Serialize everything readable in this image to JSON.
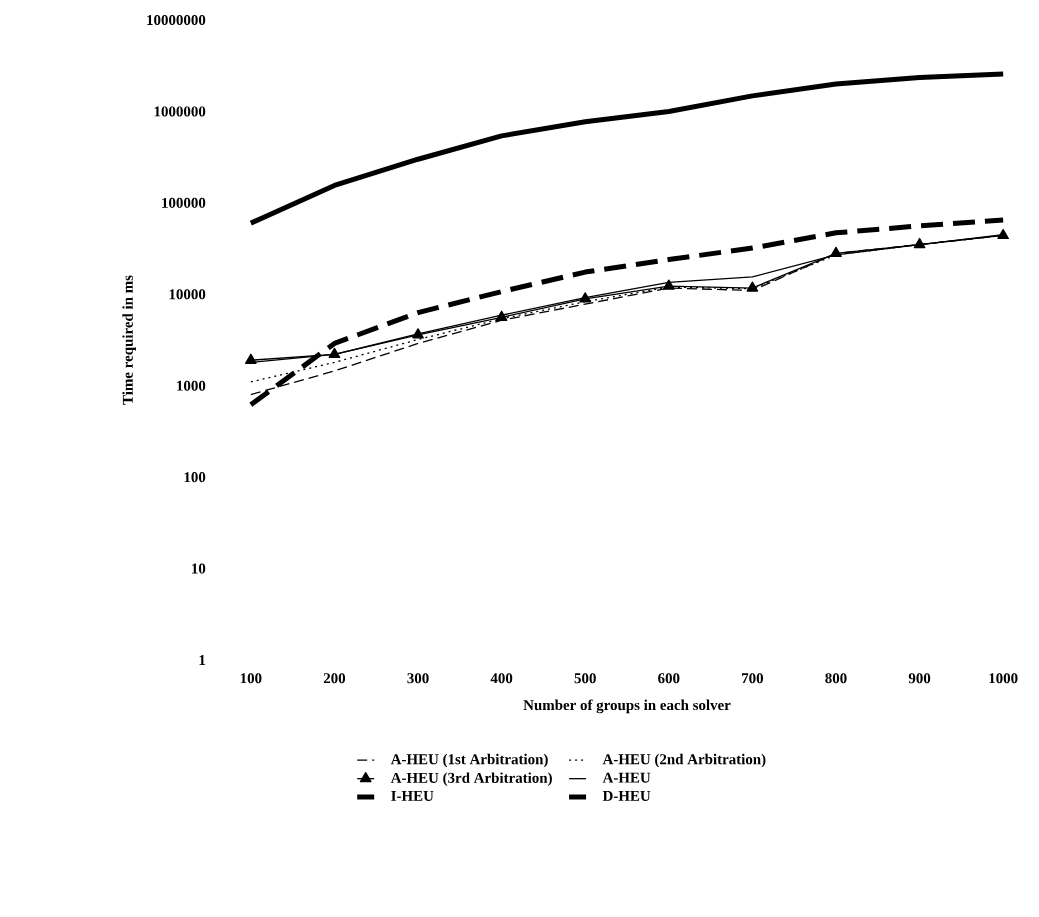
{
  "chart_data": {
    "type": "line",
    "xlabel": "Number of groups in each solver",
    "ylabel": "Time required in ms",
    "x": [
      100,
      200,
      300,
      400,
      500,
      600,
      700,
      800,
      900,
      1000
    ],
    "xlim": [
      100,
      1000
    ],
    "xticks": [
      100,
      200,
      300,
      400,
      500,
      600,
      700,
      800,
      900,
      1000
    ],
    "ylim": [
      1,
      10000000
    ],
    "yticks": [
      1,
      10,
      100,
      1000,
      10000,
      100000,
      1000000,
      10000000
    ],
    "log": "y",
    "grid": false,
    "legend": "bottom",
    "marker": "none",
    "series": [
      {
        "name": "A-HEU (1st Arbitration)",
        "color": "#000000",
        "line_style": "dashed",
        "values": [
          800,
          1450,
          2900,
          5200,
          7800,
          11700,
          11000,
          28000,
          35000,
          44000
        ]
      },
      {
        "name": "A-HEU (2nd Arbitration)",
        "color": "#000000",
        "line_style": "dotted",
        "values": [
          1100,
          1800,
          3200,
          5400,
          8300,
          12000,
          11500,
          27000,
          35000,
          44000
        ]
      },
      {
        "name": "A-HEU (3rd Arbitration)",
        "color": "#000000",
        "line_style": "solid",
        "marker": "triangle",
        "values": [
          1900,
          2200,
          3600,
          5600,
          8900,
          12300,
          11700,
          28000,
          35000,
          44000
        ]
      },
      {
        "name": "A-HEU",
        "color": "#000000",
        "line_style": "solid",
        "values": [
          1800,
          2200,
          3700,
          5900,
          9200,
          13500,
          15500,
          27000,
          35000,
          45000
        ]
      },
      {
        "name": "I-HEU",
        "color": "#000000",
        "line_style": "dashed",
        "values": [
          620,
          2900,
          6300,
          10700,
          17500,
          24000,
          32000,
          47000,
          56000,
          65000
        ]
      },
      {
        "name": "D-HEU",
        "color": "#000000",
        "line_style": "solid",
        "values": [
          60000,
          155000,
          300000,
          540000,
          770000,
          1000000,
          1480000,
          2000000,
          2350000,
          2570000
        ]
      }
    ]
  }
}
